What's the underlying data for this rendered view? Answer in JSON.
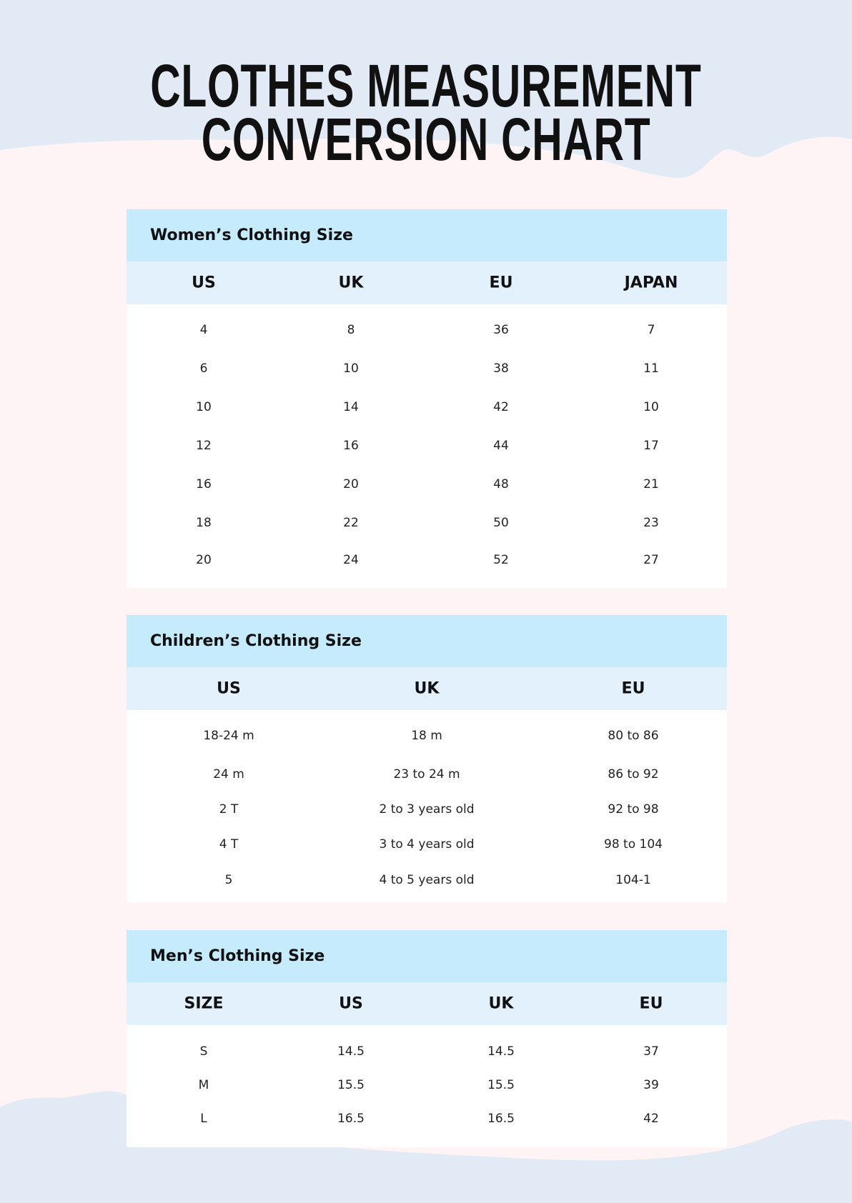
{
  "title": {
    "line1": "CLOTHES MEASUREMENT",
    "line2": "CONVERSION CHART"
  },
  "colors": {
    "background_blue": "#e2ebf5",
    "background_pink": "#fff4f5",
    "table_title_bg": "#c6ebfd",
    "table_header_bg": "#e2f1fb"
  },
  "tables": [
    {
      "title": "Women’s Clothing Size",
      "columns": [
        "US",
        "UK",
        "EU",
        "JAPAN"
      ],
      "rows": [
        [
          "4",
          "8",
          "36",
          "7"
        ],
        [
          "6",
          "10",
          "38",
          "11"
        ],
        [
          "10",
          "14",
          "42",
          "10"
        ],
        [
          "12",
          "16",
          "44",
          "17"
        ],
        [
          "16",
          "20",
          "48",
          "21"
        ],
        [
          "18",
          "22",
          "50",
          "23"
        ],
        [
          "20",
          "24",
          "52",
          "27"
        ]
      ]
    },
    {
      "title": "Children’s Clothing Size",
      "columns": [
        "US",
        "UK",
        "EU"
      ],
      "rows": [
        [
          "18-24 m",
          "18 m",
          "80 to 86"
        ],
        [
          "24 m",
          "23 to 24 m",
          "86 to 92"
        ],
        [
          "2 T",
          "2 to 3 years old",
          "92 to 98"
        ],
        [
          "4 T",
          "3 to 4 years old",
          "98 to 104"
        ],
        [
          "5",
          "4 to 5 years old",
          "104-1"
        ]
      ]
    },
    {
      "title": "Men’s Clothing Size",
      "columns": [
        "SIZE",
        "US",
        "UK",
        "EU"
      ],
      "rows": [
        [
          "S",
          "14.5",
          "14.5",
          "37"
        ],
        [
          "M",
          "15.5",
          "15.5",
          "39"
        ],
        [
          "L",
          "16.5",
          "16.5",
          "42"
        ]
      ]
    }
  ]
}
